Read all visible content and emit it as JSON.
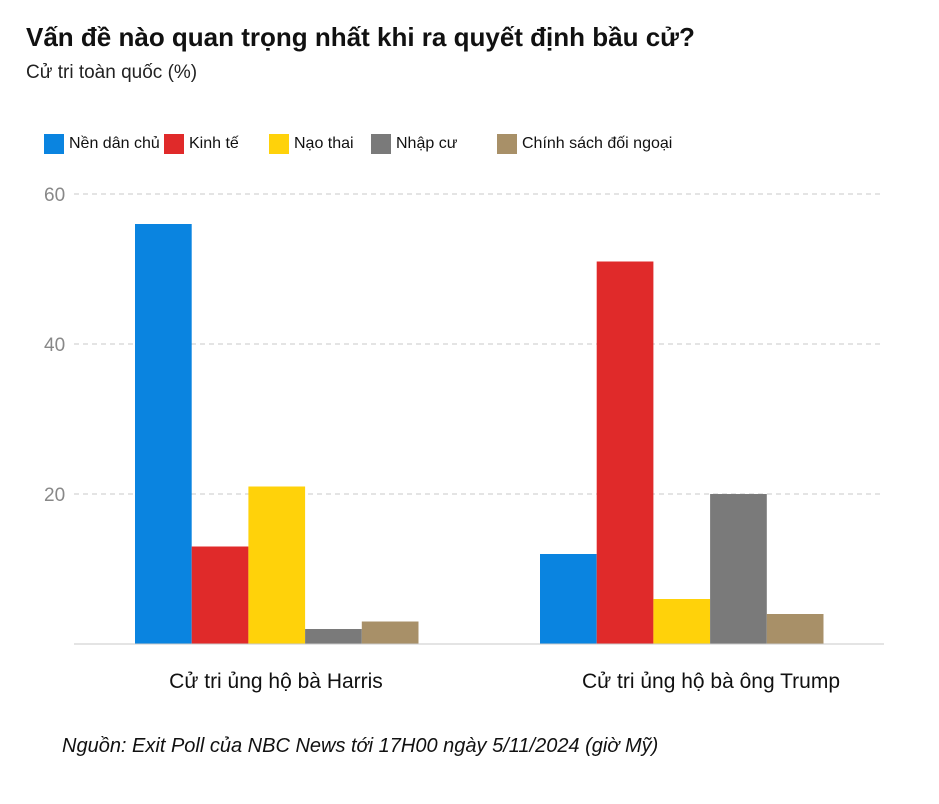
{
  "header": {
    "title": "Vấn đề nào quan trọng nhất khi ra quyết định bầu cử?",
    "subtitle": "Cử tri toàn quốc (%)"
  },
  "footer": {
    "source": "Nguồn: Exit Poll của NBC News tới 17H00 ngày 5/11/2024 (giờ Mỹ)"
  },
  "chart_data": {
    "type": "bar",
    "title": "Vấn đề nào quan trọng nhất khi ra quyết định bầu cử?",
    "subtitle": "Cử tri toàn quốc (%)",
    "categories": [
      "Cử tri ủng hộ bà Harris",
      "Cử tri ủng hộ bà ông Trump"
    ],
    "series": [
      {
        "name": "Nền dân chủ",
        "color": "#0a84e0",
        "values": [
          56,
          12
        ]
      },
      {
        "name": "Kinh tế",
        "color": "#e02a2a",
        "values": [
          13,
          51
        ]
      },
      {
        "name": "Nạo thai",
        "color": "#ffd20a",
        "values": [
          21,
          6
        ]
      },
      {
        "name": "Nhập cư",
        "color": "#7a7a7a",
        "values": [
          2,
          20
        ]
      },
      {
        "name": "Chính sách đối ngoại",
        "color": "#a89068",
        "values": [
          3,
          4
        ]
      }
    ],
    "ylim": [
      0,
      60
    ],
    "yticks": [
      20,
      40,
      60
    ],
    "grid": true,
    "legend_position": "top-left"
  }
}
